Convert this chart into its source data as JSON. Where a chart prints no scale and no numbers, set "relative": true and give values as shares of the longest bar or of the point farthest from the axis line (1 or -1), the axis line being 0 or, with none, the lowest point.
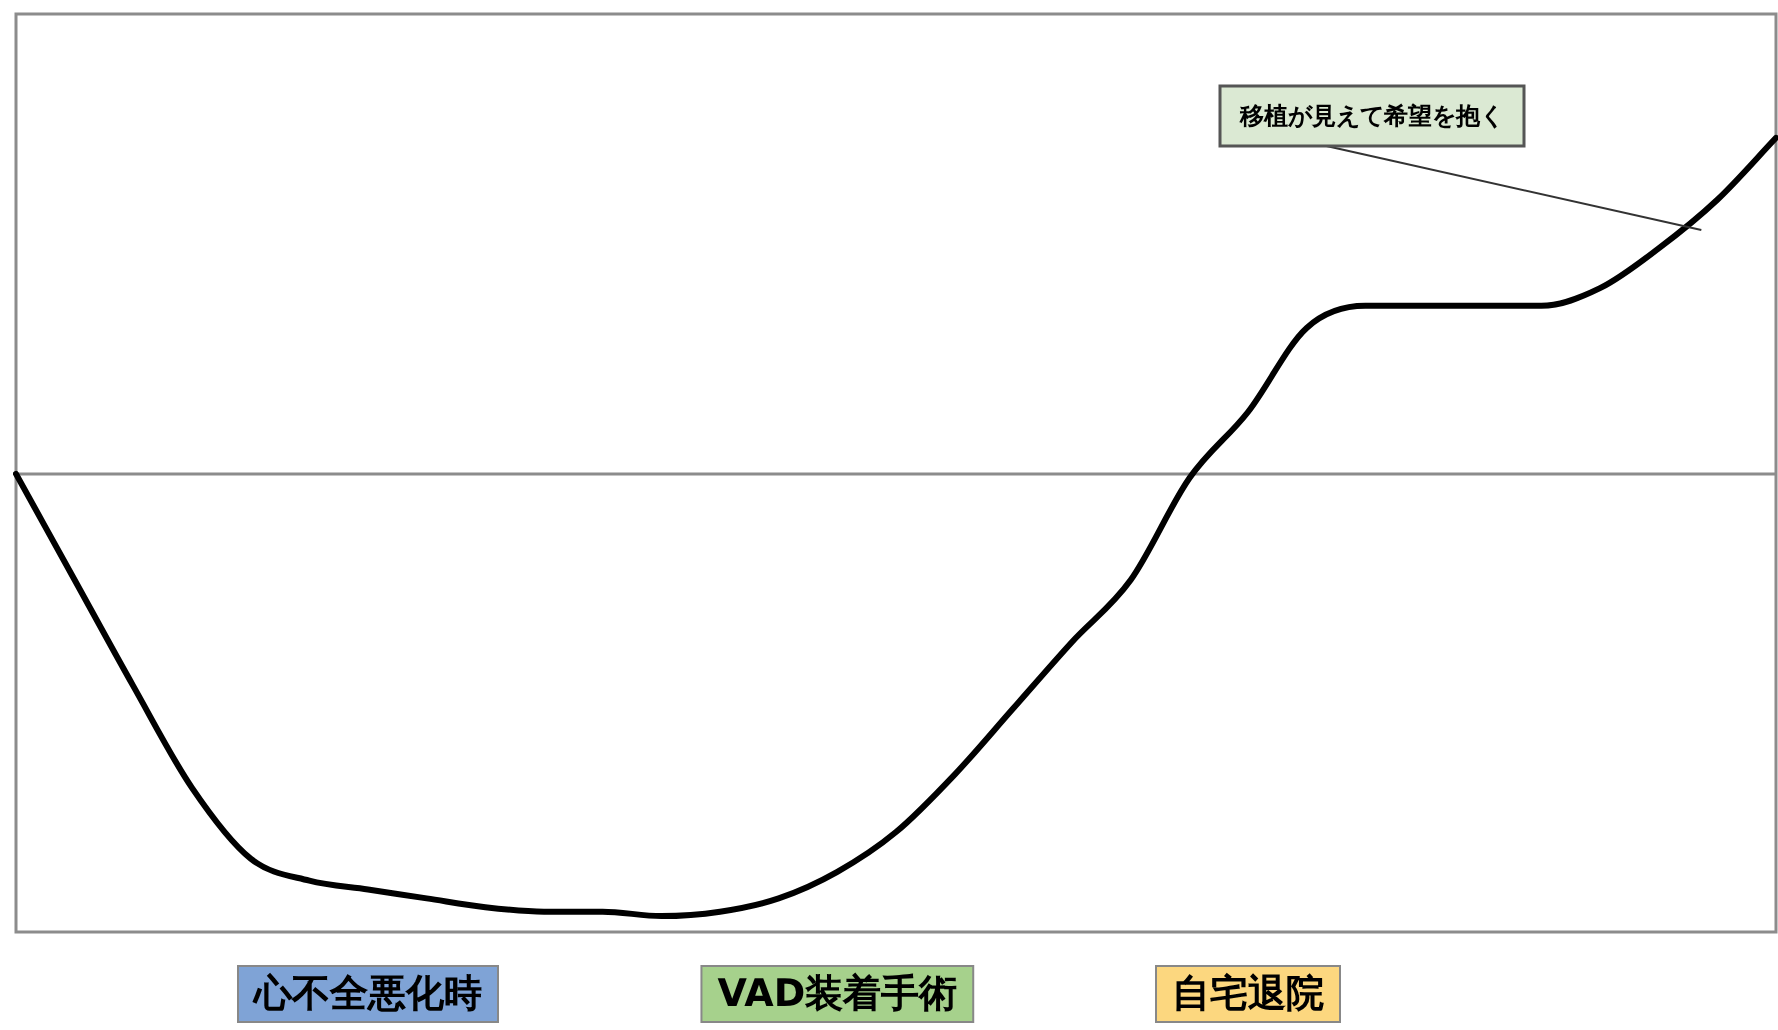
{
  "chart_data": {
    "type": "line",
    "relative": true,
    "categories": [
      null,
      null,
      null,
      null,
      null,
      null,
      "心不全悪化時",
      null,
      null,
      null,
      null,
      null,
      null,
      null,
      "VAD装着手術",
      null,
      null,
      null,
      null,
      null,
      null,
      "自宅退院",
      null,
      null,
      null,
      null,
      null,
      null,
      null,
      null,
      null
    ],
    "series": [
      {
        "color": "#000000",
        "values": [
          0,
          -0.24,
          -0.48,
          -0.71,
          -0.87,
          -0.92,
          -0.94,
          -0.96,
          -0.98,
          -0.99,
          -0.99,
          -1,
          -0.99,
          -0.96,
          -0.9,
          -0.81,
          -0.68,
          -0.53,
          -0.38,
          -0.24,
          -0.01,
          0.14,
          0.33,
          0.38,
          0.38,
          0.38,
          0.38,
          0.42,
          0.51,
          0.62,
          0.76
        ]
      }
    ],
    "annotations": [
      "移植が見えて希望を抱く"
    ],
    "marker": "none",
    "legend": false
  }
}
